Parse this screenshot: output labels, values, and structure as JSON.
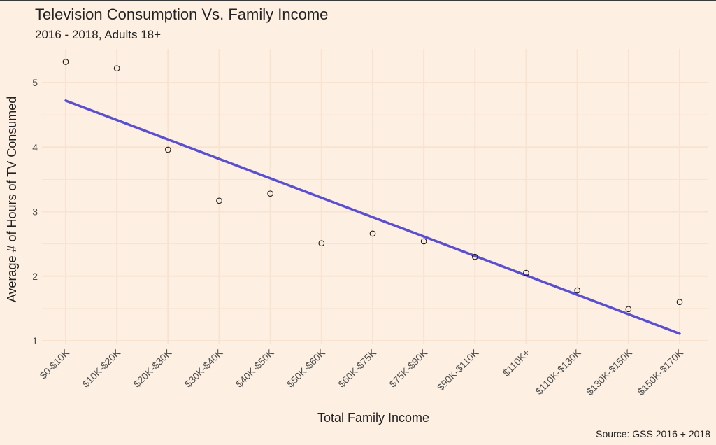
{
  "chart_data": {
    "type": "scatter",
    "title": "Television Consumption Vs. Family Income",
    "subtitle": "2016 - 2018, Adults 18+",
    "caption": "Source: GSS 2016 + 2018",
    "xlabel": "Total Family Income",
    "ylabel": "Average # of Hours of TV Consumed",
    "categories": [
      "$0-$10K",
      "$10K-$20K",
      "$20K-$30K",
      "$30K-$40K",
      "$40K-$50K",
      "$50K-$60K",
      "$60K-$75K",
      "$75K-$90K",
      "$90K-$110K",
      "$110K+",
      "$110K-$130K",
      "$130K-$150K",
      "$150K-$170K"
    ],
    "values": [
      5.32,
      5.22,
      3.96,
      3.17,
      3.28,
      2.51,
      2.66,
      2.54,
      2.3,
      2.05,
      1.78,
      1.49,
      1.6
    ],
    "yticks": [
      1,
      2,
      3,
      4,
      5
    ],
    "ylim": [
      0.8,
      5.5
    ],
    "trendline": {
      "start": 4.72,
      "end": 1.11,
      "color": "#5A4FCF"
    },
    "grid": true,
    "colors": {
      "background": "#FDF0E2",
      "grid": "#F8E2D0",
      "point_stroke": "#1a1a1a"
    }
  }
}
